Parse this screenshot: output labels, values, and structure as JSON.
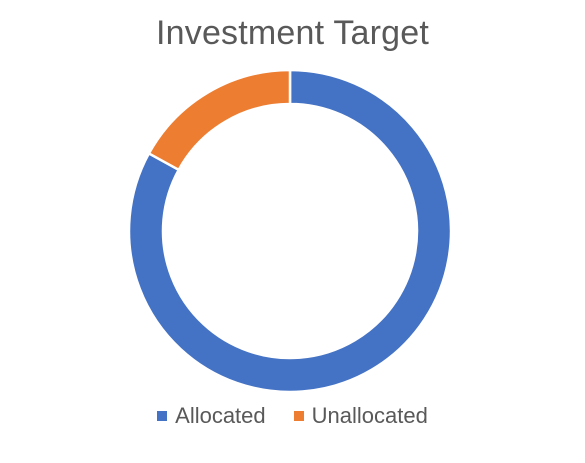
{
  "chart_data": {
    "type": "pie",
    "subtype": "donut",
    "title": "Investment Target",
    "categories": [
      "Allocated",
      "Unallocated"
    ],
    "values": [
      83,
      17
    ],
    "colors": [
      "#4472C4",
      "#ED7D31"
    ],
    "legend_position": "bottom"
  }
}
